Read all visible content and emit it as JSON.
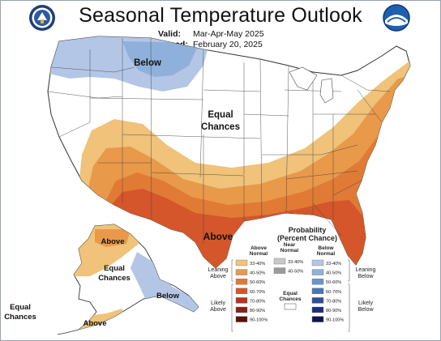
{
  "header": {
    "title": "Seasonal Temperature Outlook",
    "valid_label": "Valid:",
    "valid_value": "Mar-Apr-May 2025",
    "issued_label": "Issued:",
    "issued_value": "February 20, 2025"
  },
  "logos": {
    "left": "Department of Commerce seal",
    "right": "NOAA logo"
  },
  "map_labels": {
    "below_nw": "Below",
    "equal_line1": "Equal",
    "equal_line2": "Chances",
    "above_main": "Above",
    "ak_above_north": "Above",
    "ak_equal_line1": "Equal",
    "ak_equal_line2": "Chances",
    "ak_below": "Below",
    "ak_above_south": "Above",
    "hi_equal_line1": "Equal",
    "hi_equal_line2": "Chances"
  },
  "legend": {
    "title_line1": "Probability",
    "title_line2": "(Percent Chance)",
    "above_head1": "Above",
    "above_head2": "Normal",
    "near_head1": "Near",
    "near_head2": "Normal",
    "below_head1": "Below",
    "below_head2": "Normal",
    "leaning_above1": "Leaning",
    "leaning_above2": "Above",
    "likely_above1": "Likely",
    "likely_above2": "Above",
    "leaning_below1": "Leaning",
    "leaning_below2": "Below",
    "likely_below1": "Likely",
    "likely_below2": "Below",
    "equal1": "Equal",
    "equal2": "Chances",
    "above_bins": [
      {
        "label": "33-40%",
        "color": "#f0c27a"
      },
      {
        "label": "40-50%",
        "color": "#e8994a"
      },
      {
        "label": "50-60%",
        "color": "#e07a35"
      },
      {
        "label": "60-70%",
        "color": "#d4562a"
      },
      {
        "label": "70-80%",
        "color": "#b8331f"
      },
      {
        "label": "80-90%",
        "color": "#8a2014"
      },
      {
        "label": "90-100%",
        "color": "#5a1208"
      }
    ],
    "near_bins": [
      {
        "label": "33-40%",
        "color": "#c8c8c8"
      },
      {
        "label": "40-50%",
        "color": "#9a9a9a"
      }
    ],
    "below_bins": [
      {
        "label": "33-40%",
        "color": "#b4c6e6"
      },
      {
        "label": "40-50%",
        "color": "#8fb0da"
      },
      {
        "label": "50-60%",
        "color": "#6a94cc"
      },
      {
        "label": "60-70%",
        "color": "#4a74b8"
      },
      {
        "label": "70-80%",
        "color": "#2e4f9c"
      },
      {
        "label": "80-90%",
        "color": "#1c2f7a"
      },
      {
        "label": "90-100%",
        "color": "#0e1650"
      }
    ]
  }
}
